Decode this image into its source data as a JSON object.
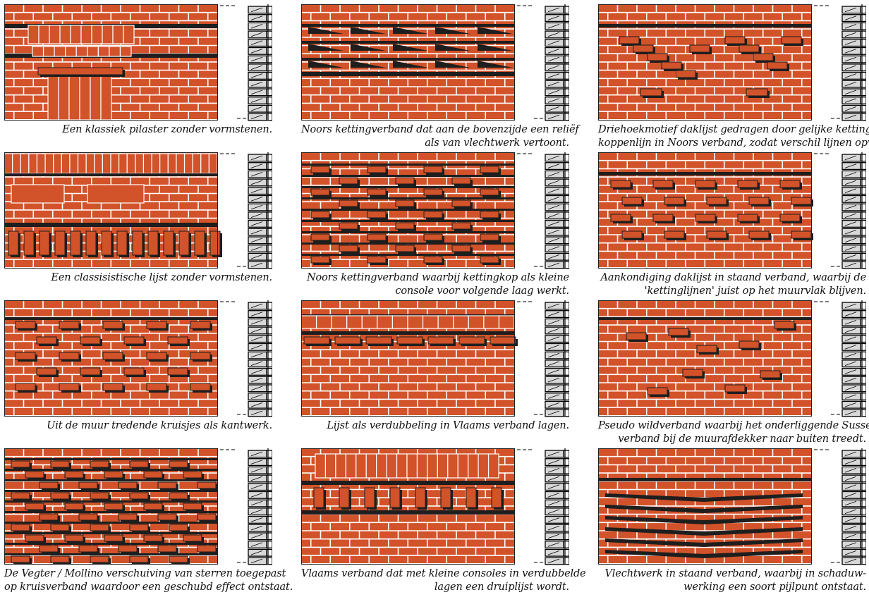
{
  "colors": {
    "brick": "#d2522a",
    "mortar": "#ffffff",
    "shadow": "#1e1e1e",
    "section_fill": "#d8d8d8",
    "outline": "#000000"
  },
  "panels": [
    {
      "motif": "pilaster",
      "caption": [
        "Een klassiek pilaster zonder vormstenen."
      ]
    },
    {
      "motif": "noors-weave",
      "caption": [
        "Noors kettingverband dat aan de bovenzijde een reliëf",
        "als van vlechtwerk vertoont."
      ]
    },
    {
      "motif": "triangle",
      "caption": [
        "Driehoekmotief daklijst gedragen door gelijke ketting-",
        "koppenlijn in Noors verband, zodat verschil lijnen opvalt."
      ]
    },
    {
      "motif": "classicist",
      "caption": [
        "Een classisistische lijst zonder vormstenen."
      ]
    },
    {
      "motif": "noors-console",
      "caption": [
        "Noors kettingverband waarbij kettingkop als kleine",
        "console voor volgende laag werkt."
      ]
    },
    {
      "motif": "standing",
      "caption": [
        "Aankondiging daklijst in staand verband, waarbij de",
        "'kettinglijnen' juist op het muurvlak blijven."
      ]
    },
    {
      "motif": "crosses",
      "caption": [
        "Uit de muur tredende kruisjes als kantwerk."
      ]
    },
    {
      "motif": "flemish-double",
      "caption": [
        "Lijst als verdubbeling in Vlaams verband lagen."
      ]
    },
    {
      "motif": "pseudo-wild",
      "caption": [
        "Pseudo wildverband waarbij het onderliggende Sussex",
        "verband bij de muurafdekker naar buiten treedt."
      ]
    },
    {
      "motif": "stars",
      "caption": [
        "De Vegter / Mollino verschuiving van sterren toegepast",
        "op kruisverband waardoor een geschubd effect ontstaat."
      ]
    },
    {
      "motif": "drip",
      "caption": [
        "Vlaams verband dat met kleine consoles in verdubbelde",
        "lagen een druiplijst wordt."
      ]
    },
    {
      "motif": "arrow",
      "caption": [
        "Vlechtwerk in staand verband, waarbij in schaduw-",
        "werking een soort pijlpunt ontstaat."
      ]
    }
  ]
}
